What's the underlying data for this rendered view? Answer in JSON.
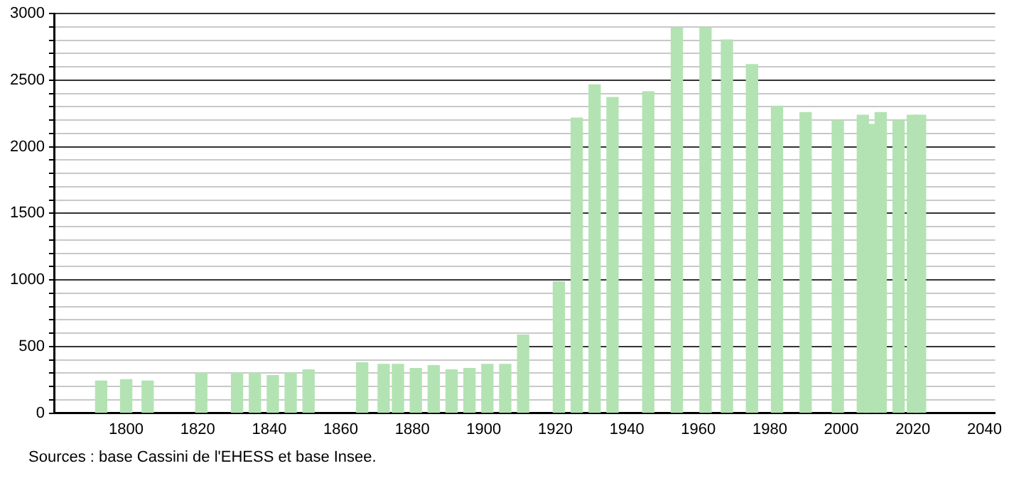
{
  "chart_data": {
    "type": "bar",
    "color": "#b3e3b3",
    "x": [
      1793,
      1800,
      1806,
      1821,
      1831,
      1836,
      1841,
      1846,
      1851,
      1866,
      1872,
      1876,
      1881,
      1886,
      1891,
      1896,
      1901,
      1906,
      1911,
      1921,
      1926,
      1931,
      1936,
      1946,
      1954,
      1962,
      1968,
      1975,
      1982,
      1990,
      1999,
      2006,
      2008,
      2011,
      2016,
      2020,
      2022
    ],
    "values": [
      241,
      252,
      241,
      301,
      301,
      301,
      283,
      301,
      325,
      378,
      367,
      367,
      336,
      357,
      325,
      336,
      367,
      367,
      587,
      987,
      2216,
      2465,
      2371,
      2413,
      2893,
      2893,
      2803,
      2617,
      2306,
      2258,
      2196,
      2237,
      2168,
      2258,
      2196,
      2237,
      2237
    ],
    "xlim": [
      1780,
      2043
    ],
    "xticks": [
      1800,
      1820,
      1840,
      1860,
      1880,
      1900,
      1920,
      1940,
      1960,
      1980,
      2000,
      2020,
      2040
    ],
    "ylim": [
      0,
      3000
    ],
    "yticks": [
      0,
      {
        "value": 100,
        "label": null
      },
      {
        "value": 200,
        "label": null
      },
      {
        "value": 300,
        "label": null
      },
      {
        "value": 400,
        "label": null
      },
      500,
      {
        "value": 600,
        "label": null
      },
      {
        "value": 700,
        "label": null
      },
      {
        "value": 800,
        "label": null
      },
      {
        "value": 900,
        "label": null
      },
      1000,
      {
        "value": 1100,
        "label": null
      },
      {
        "value": 1200,
        "label": null
      },
      {
        "value": 1300,
        "label": null
      },
      {
        "value": 1400,
        "label": null
      },
      1500,
      {
        "value": 1600,
        "label": null
      },
      {
        "value": 1700,
        "label": null
      },
      {
        "value": 1800,
        "label": null
      },
      {
        "value": 1900,
        "label": null
      },
      2000,
      {
        "value": 2100,
        "label": null
      },
      {
        "value": 2200,
        "label": null
      },
      {
        "value": 2300,
        "label": null
      },
      {
        "value": 2400,
        "label": null
      },
      2500,
      {
        "value": 2600,
        "label": null
      },
      {
        "value": 2700,
        "label": null
      },
      {
        "value": 2800,
        "label": null
      },
      {
        "value": 2900,
        "label": null
      },
      3000
    ],
    "grid": "y",
    "annotations": [
      "Sources : base Cassini de l'EHESS et base Insee."
    ]
  }
}
